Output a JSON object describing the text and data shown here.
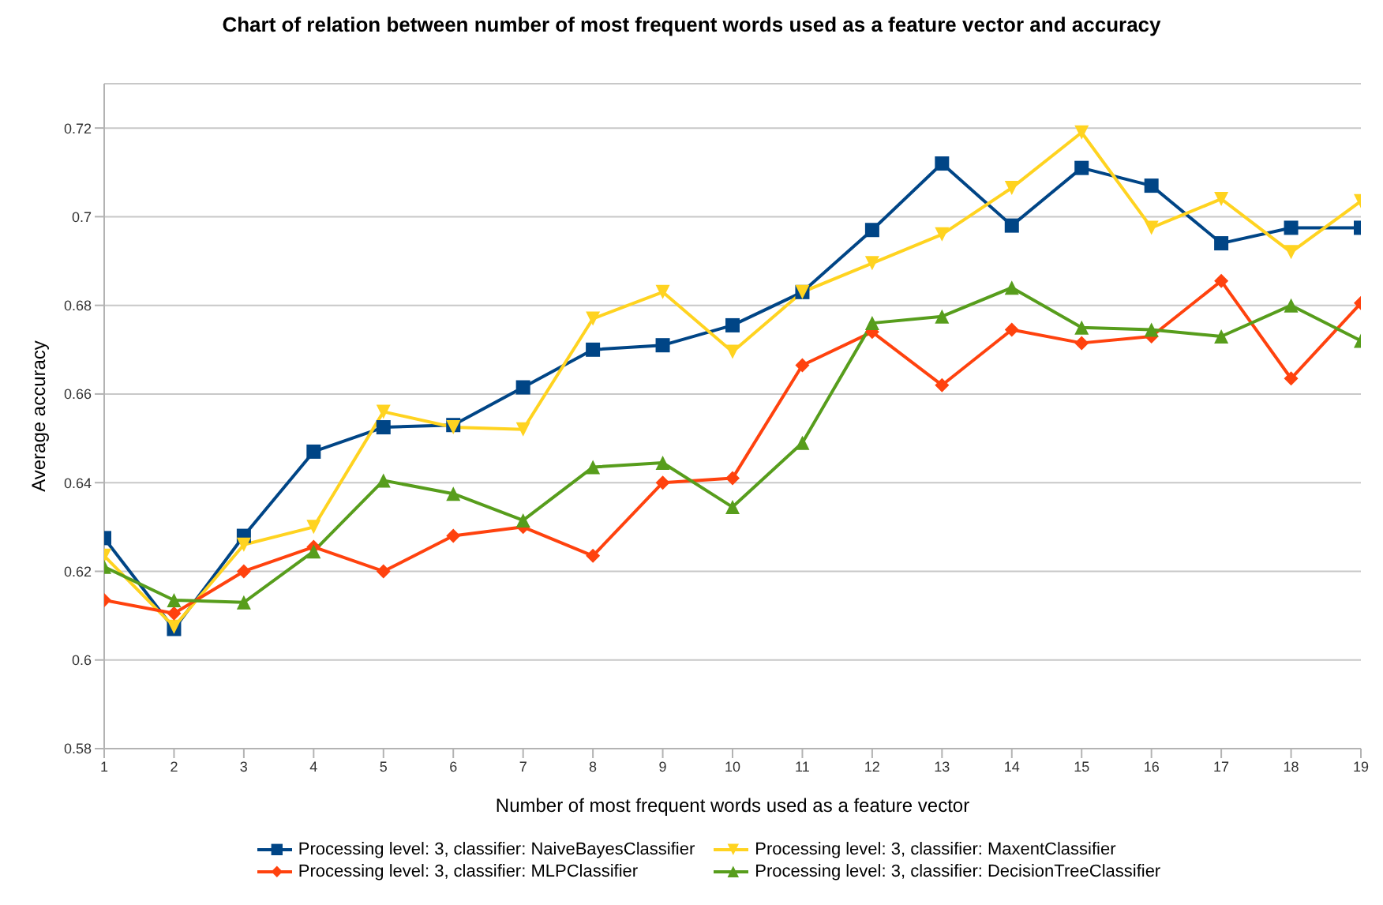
{
  "chart_data": {
    "type": "line",
    "title": "Chart of relation between number of most frequent words used as a feature vector and accuracy",
    "xlabel": "Number of most frequent words used as a feature vector",
    "ylabel": "Average accuracy",
    "x": [
      1,
      2,
      3,
      4,
      5,
      6,
      7,
      8,
      9,
      10,
      11,
      12,
      13,
      14,
      15,
      16,
      17,
      18,
      19
    ],
    "xlim": [
      1,
      19
    ],
    "xticks": [
      1,
      2,
      3,
      4,
      5,
      6,
      7,
      8,
      9,
      10,
      11,
      12,
      13,
      14,
      15,
      16,
      17,
      18,
      19
    ],
    "ylim": [
      0.58,
      0.73
    ],
    "yticks": [
      0.58,
      0.6,
      0.62,
      0.64,
      0.66,
      0.68,
      0.7,
      0.72
    ],
    "grid": "y",
    "legend": "bottom",
    "line_style": "solid",
    "series": [
      {
        "name": "Processing level: 3, classifier: NaiveBayesClassifier",
        "color": "#004586",
        "marker": "square",
        "values": [
          0.6275,
          0.607,
          0.628,
          0.647,
          0.6525,
          0.653,
          0.6615,
          0.67,
          0.671,
          0.6755,
          0.683,
          0.697,
          0.712,
          0.698,
          0.711,
          0.707,
          0.694,
          0.6975,
          0.6975
        ]
      },
      {
        "name": "Processing level: 3, classifier: MaxentClassifier",
        "color": "#ffd320",
        "marker": "triangle-down",
        "values": [
          0.6235,
          0.6075,
          0.626,
          0.63,
          0.656,
          0.6525,
          0.652,
          0.677,
          0.683,
          0.6695,
          0.683,
          0.6895,
          0.696,
          0.7065,
          0.719,
          0.6975,
          0.704,
          0.692,
          0.7035
        ]
      },
      {
        "name": "Processing level: 3, classifier: MLPClassifier",
        "color": "#ff420e",
        "marker": "diamond",
        "values": [
          0.6135,
          0.6105,
          0.62,
          0.6255,
          0.62,
          0.628,
          0.63,
          0.6235,
          0.64,
          0.641,
          0.6665,
          0.674,
          0.662,
          0.6745,
          0.6715,
          0.673,
          0.6855,
          0.6635,
          0.6805
        ]
      },
      {
        "name": "Processing level: 3, classifier: DecisionTreeClassifier",
        "color": "#579d1c",
        "marker": "triangle",
        "values": [
          0.621,
          0.6135,
          0.613,
          0.6245,
          0.6405,
          0.6375,
          0.6315,
          0.6435,
          0.6445,
          0.6345,
          0.649,
          0.676,
          0.6775,
          0.684,
          0.675,
          0.6745,
          0.673,
          0.68,
          0.672
        ]
      }
    ]
  }
}
